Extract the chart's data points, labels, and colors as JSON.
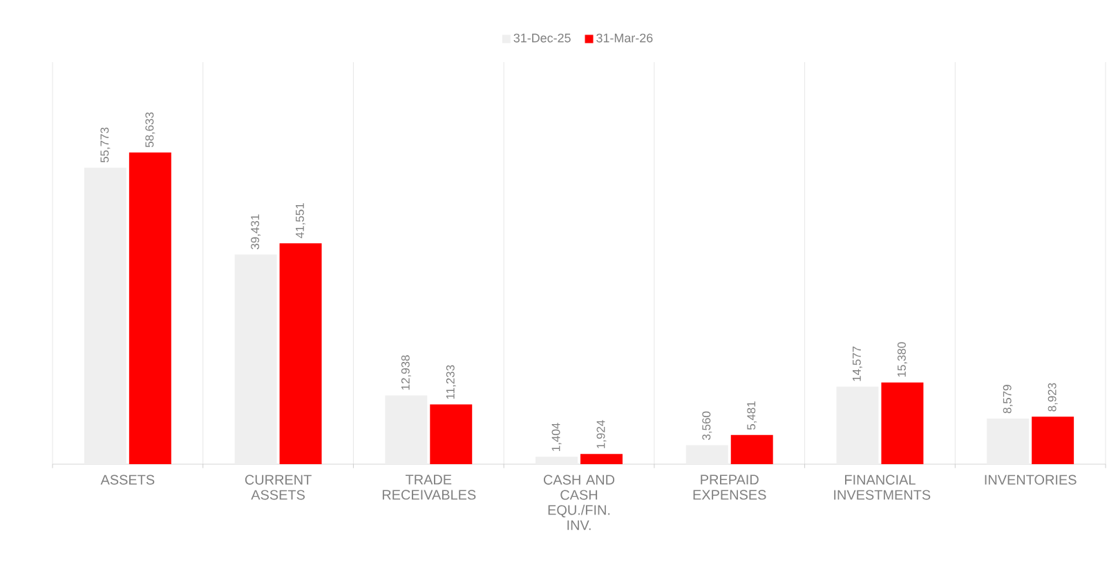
{
  "chart_data": {
    "type": "bar",
    "categories": [
      "ASSETS",
      "CURRENT ASSETS",
      "TRADE RECEIVABLES",
      "CASH AND CASH EQU./FIN. INV.",
      "PREPAID EXPENSES",
      "FINANCIAL INVESTMENTS",
      "INVENTORIES"
    ],
    "series": [
      {
        "name": "31-Dec-25",
        "color": "#efefef",
        "values": [
          55773,
          39431,
          12938,
          1404,
          3560,
          14577,
          8579
        ],
        "value_labels": [
          "55,773",
          "39,431",
          "12,938",
          "1,404",
          "3,560",
          "14,577",
          "8,579"
        ]
      },
      {
        "name": "31-Mar-26",
        "color": "#ff0000",
        "values": [
          58633,
          41551,
          11233,
          1924,
          5481,
          15380,
          8923
        ],
        "value_labels": [
          "58,633",
          "41,551",
          "11,233",
          "1,924",
          "5,481",
          "15,380",
          "8,923"
        ]
      }
    ],
    "grid": "x",
    "legend": "top",
    "tick_labels": "x"
  }
}
